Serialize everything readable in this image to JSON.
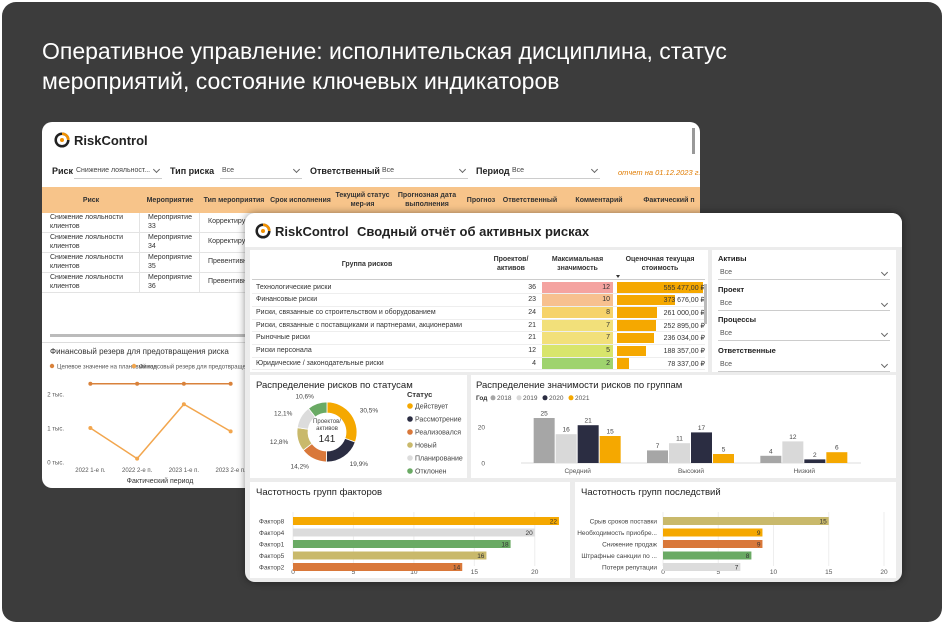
{
  "header": {
    "title": "Оперативное управление: исполнительская дисциплина, статус мероприятий, состояние ключевых индикаторов"
  },
  "back_report": {
    "logo": "RiskControl",
    "filters": [
      {
        "label": "Риск",
        "value": "Снижение лояльност..."
      },
      {
        "label": "Тип риска",
        "value": "Все"
      },
      {
        "label": "Ответственный",
        "value": "Все"
      },
      {
        "label": "Период",
        "value": "Все"
      }
    ],
    "report_date": "отчет на 01.12.2023 г.",
    "table": {
      "columns": [
        "Риск",
        "Мероприятие",
        "Тип мероприятия",
        "Срок исполнения",
        "Текущий статус мер-ия",
        "Прогнозная дата выполнения",
        "Прогноз",
        "Ответственный",
        "Комментарий",
        "Фактический п"
      ],
      "rows": [
        [
          "Снижение лояльности клиентов",
          "Мероприятие 33",
          "Корректиру"
        ],
        [
          "Снижение лояльности клиентов",
          "Мероприятие 34",
          "Корректиру"
        ],
        [
          "Снижение лояльности клиентов",
          "Мероприятие 35",
          "Превентивн"
        ],
        [
          "Снижение лояльности клиентов",
          "Мероприятие 36",
          "Превентивн"
        ]
      ]
    },
    "reserve_chart": {
      "type": "line",
      "title": "Финансовый резерв для предотвращения риска",
      "categories": [
        "2022 1-е п.",
        "2022 2-е п.",
        "2023 1-е п.",
        "2023 2-е п."
      ],
      "series": [
        {
          "name": "Целевое значение на плановый год",
          "color": "#d9823b",
          "values": [
            2.3,
            2.3,
            2.3,
            2.3
          ]
        },
        {
          "name": "Финансовый резерв для предотвращения ри",
          "color": "#f2a64e",
          "values": [
            1.0,
            0.1,
            1.7,
            0.9
          ]
        }
      ],
      "ylim": [
        0,
        2.6
      ],
      "yticks": [
        {
          "value": 0,
          "label": "0 тыс."
        },
        {
          "value": 1,
          "label": "1 тыс."
        },
        {
          "value": 2,
          "label": "2 тыс."
        }
      ],
      "xlabel": "Фактический период"
    }
  },
  "summary_report": {
    "logo": "RiskControl",
    "title": "Сводный отчёт об активных рисках",
    "risk_table": {
      "columns": [
        "Группа рисков",
        "Проектов/ активов",
        "Максимальная значимость",
        "Оценочная текущая стоимость"
      ],
      "groups": [
        "Технологические риски",
        "Финансовые риски",
        "Риски, связанные со строительством и оборудованием",
        "Риски, связанные с поставщиками и партнерами, акционерами",
        "Рыночные риски",
        "Риски персонала",
        "Юридические / законодательные риски"
      ],
      "projects": [
        36,
        23,
        24,
        21,
        21,
        12,
        4
      ],
      "max_significance": [
        12,
        10,
        8,
        7,
        7,
        5,
        2
      ],
      "significance_colors": [
        "#f4a3a0",
        "#f7c08f",
        "#f6d36a",
        "#f2e07a",
        "#f2e07a",
        "#d8e56c",
        "#9fd36e"
      ],
      "cost": [
        555477,
        373676,
        261000,
        252895,
        236034,
        188357,
        78337
      ],
      "cost_labels": [
        "555 477,00 ₽",
        "373 676,00 ₽",
        "261 000,00 ₽",
        "252 895,00 ₽",
        "236 034,00 ₽",
        "188 357,00 ₽",
        "78 337,00 ₽"
      ],
      "cost_color": "#f5a800"
    },
    "slicers": [
      {
        "label": "Активы",
        "value": "Все"
      },
      {
        "label": "Проект",
        "value": "Все"
      },
      {
        "label": "Процессы",
        "value": "Все"
      },
      {
        "label": "Ответственные",
        "value": "Все"
      }
    ],
    "status_chart": {
      "type": "donut",
      "title": "Распределение рисков по статусам",
      "center_label": "Проектов/ активов",
      "center_value": 141,
      "legend_title": "Статус",
      "categories": [
        "Действует",
        "Рассмотрение",
        "Реализовался",
        "Новый",
        "Планирование",
        "Отклонен"
      ],
      "values": [
        30.5,
        19.9,
        14.2,
        12.8,
        12.1,
        10.6
      ],
      "value_labels": [
        "30,5%",
        "19,9%",
        "14,2%",
        "12,8%",
        "12,1%",
        "10,6%"
      ],
      "colors": [
        "#f5a800",
        "#2b2d42",
        "#d9783a",
        "#c9b96b",
        "#dcdcdc",
        "#6aaa64"
      ]
    },
    "severity_chart": {
      "type": "bar",
      "title": "Распределение значимости рисков по группам",
      "legend_title": "Год",
      "categories": [
        "Средний",
        "Высокий",
        "Низкий"
      ],
      "series": [
        {
          "name": "2018",
          "color": "#a6a6a6",
          "values": [
            25,
            7,
            4
          ]
        },
        {
          "name": "2019",
          "color": "#d9d9d9",
          "values": [
            16,
            11,
            12
          ]
        },
        {
          "name": "2020",
          "color": "#2b2d42",
          "values": [
            21,
            17,
            2
          ]
        },
        {
          "name": "2021",
          "color": "#f5a800",
          "values": [
            15,
            5,
            6
          ]
        }
      ],
      "ylim": [
        0,
        30
      ],
      "yticks": [
        0,
        20
      ]
    },
    "factors_chart": {
      "type": "hbar",
      "title": "Частотность групп факторов",
      "categories": [
        "Фактор8",
        "Фактор4",
        "Фактор1",
        "Фактор5",
        "Фактор2"
      ],
      "values": [
        22,
        20,
        18,
        16,
        14
      ],
      "colors": [
        "#f5a800",
        "#dcdcdc",
        "#6aaa64",
        "#c9b96b",
        "#d9783a"
      ],
      "xlim": [
        0,
        22.5
      ],
      "xticks": [
        0,
        5,
        10,
        15,
        20
      ],
      "grid": true
    },
    "consequences_chart": {
      "type": "hbar",
      "title": "Частотность групп последствий",
      "categories": [
        "Срыв сроков поставки",
        "Необходимость приобре...",
        "Снижение продаж",
        "Штрафные санкции по ...",
        "Потеря репутации"
      ],
      "values": [
        15,
        9,
        9,
        8,
        7
      ],
      "colors": [
        "#c9b96b",
        "#f5a800",
        "#d9783a",
        "#6aaa64",
        "#dcdcdc"
      ],
      "xlim": [
        0,
        20
      ],
      "xticks": [
        0,
        5,
        10,
        15,
        20
      ],
      "grid": true
    }
  }
}
